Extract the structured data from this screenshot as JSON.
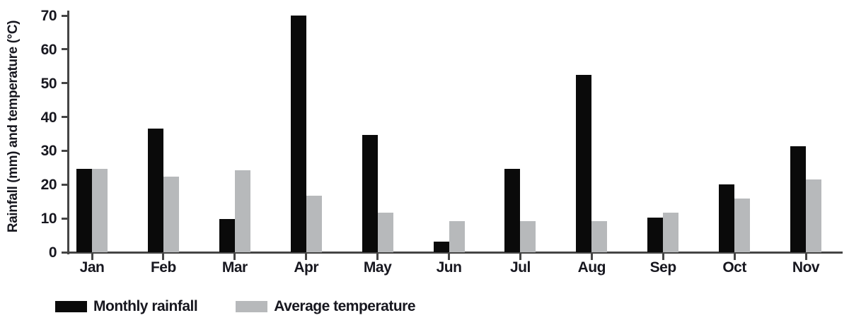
{
  "chart_data": {
    "type": "bar",
    "title": "",
    "xlabel": "",
    "ylabel": "Rainfall (mm) and temperature (°C)",
    "categories": [
      "Jan",
      "Feb",
      "Mar",
      "Apr",
      "May",
      "Jun",
      "Jul",
      "Aug",
      "Sep",
      "Oct",
      "Nov"
    ],
    "series": [
      {
        "name": "Monthly rainfall",
        "color": "#0a0a0a",
        "values": [
          24.6,
          36.6,
          9.9,
          70,
          34.7,
          3.2,
          24.6,
          52.5,
          10.2,
          20,
          31.3
        ]
      },
      {
        "name": "Average temperature",
        "color": "#b7b9bb",
        "values": [
          24.6,
          22.3,
          24.3,
          16.8,
          11.8,
          9.2,
          9.1,
          9.2,
          11.8,
          15.9,
          21.5
        ]
      }
    ],
    "ylim": [
      0,
      70
    ],
    "yticks": [
      0,
      10,
      20,
      30,
      40,
      50,
      60,
      70
    ],
    "grid": false,
    "legend_position": "bottom-left"
  },
  "colors": {
    "axis": "#454545",
    "text": "#17171f",
    "background": "#ffffff"
  }
}
